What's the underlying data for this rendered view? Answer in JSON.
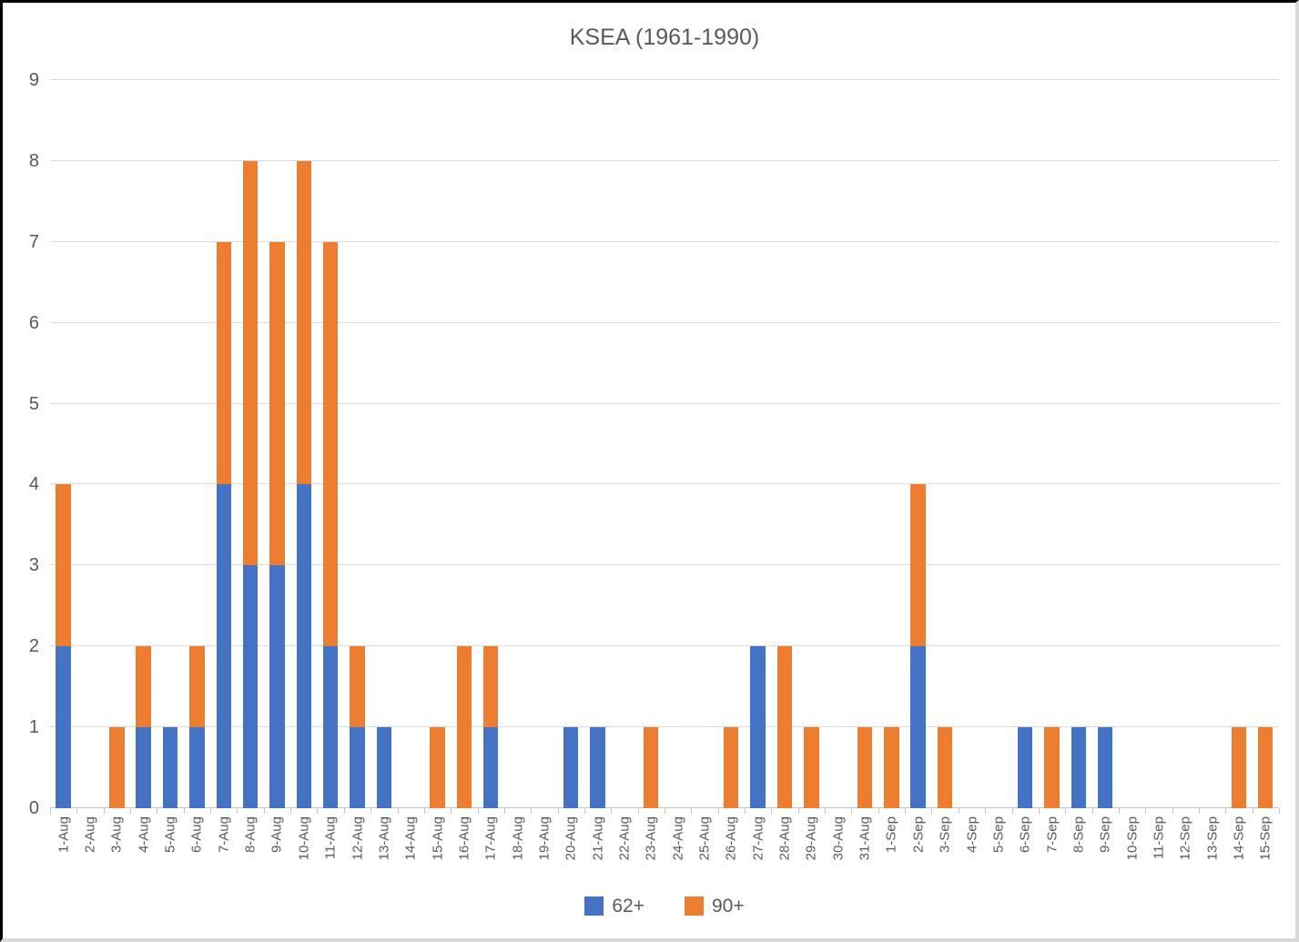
{
  "frame": {
    "background": "#ffffff",
    "border_top_left_color": "#000000",
    "border_bottom_right_color": "#d8d8d8"
  },
  "chart_data": {
    "type": "bar",
    "stacked": true,
    "title": "KSEA (1961-1990)",
    "xlabel": "",
    "ylabel": "",
    "ylim": [
      0,
      9
    ],
    "ytick_step": 1,
    "grid": true,
    "legend_position": "bottom",
    "text_color": "#595959",
    "gridline_color": "#dadada",
    "axis_color": "#c6c6c6",
    "categories": [
      "1-Aug",
      "2-Aug",
      "3-Aug",
      "4-Aug",
      "5-Aug",
      "6-Aug",
      "7-Aug",
      "8-Aug",
      "9-Aug",
      "10-Aug",
      "11-Aug",
      "12-Aug",
      "13-Aug",
      "14-Aug",
      "15-Aug",
      "16-Aug",
      "17-Aug",
      "18-Aug",
      "19-Aug",
      "20-Aug",
      "21-Aug",
      "22-Aug",
      "23-Aug",
      "24-Aug",
      "25-Aug",
      "26-Aug",
      "27-Aug",
      "28-Aug",
      "29-Aug",
      "30-Aug",
      "31-Aug",
      "1-Sep",
      "2-Sep",
      "3-Sep",
      "4-Sep",
      "5-Sep",
      "6-Sep",
      "7-Sep",
      "8-Sep",
      "9-Sep",
      "10-Sep",
      "11-Sep",
      "12-Sep",
      "13-Sep",
      "14-Sep",
      "15-Sep"
    ],
    "series": [
      {
        "name": "62+",
        "color": "#4472C4",
        "values": [
          2,
          0,
          0,
          1,
          1,
          1,
          4,
          3,
          3,
          4,
          2,
          1,
          1,
          0,
          0,
          0,
          1,
          0,
          0,
          1,
          1,
          0,
          0,
          0,
          0,
          0,
          2,
          0,
          0,
          0,
          0,
          0,
          2,
          0,
          0,
          0,
          1,
          0,
          1,
          1,
          0,
          0,
          0,
          0,
          0,
          0
        ]
      },
      {
        "name": "90+",
        "color": "#ED7D31",
        "values": [
          2,
          0,
          1,
          1,
          0,
          1,
          3,
          5,
          4,
          4,
          5,
          1,
          0,
          0,
          1,
          2,
          1,
          0,
          0,
          0,
          0,
          0,
          1,
          0,
          0,
          1,
          0,
          2,
          1,
          0,
          1,
          1,
          2,
          1,
          0,
          0,
          0,
          1,
          0,
          0,
          0,
          0,
          0,
          0,
          1,
          1
        ]
      }
    ]
  }
}
